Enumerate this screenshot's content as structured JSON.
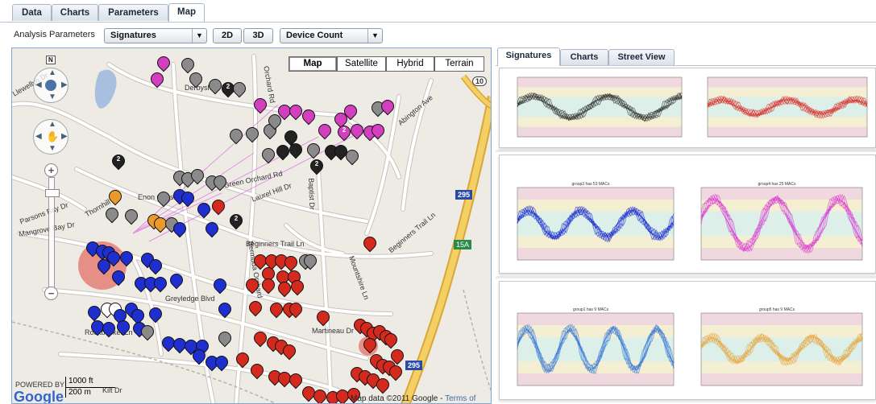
{
  "top_tabs": [
    "Data",
    "Charts",
    "Parameters",
    "Map"
  ],
  "toolbar": {
    "analysis_label": "Analysis Parameters",
    "analysis_select": "Signatures",
    "btn_2d": "2D",
    "btn_3d": "3D",
    "metric_select": "Device Count"
  },
  "map": {
    "map_types": [
      "Map",
      "Satellite",
      "Hybrid",
      "Terrain"
    ],
    "selected_type": "Map",
    "compass_label": "N",
    "scale_ft": "1000 ft",
    "scale_m": "200 m",
    "powered_by": "POWERED BY",
    "logo": "Google",
    "credit": "Map data ©2011 Google - ",
    "terms": "Terms of Use",
    "roads": [
      "Derbyshire Rd",
      "Orchard Rd",
      "Abington Ave",
      "Green Orchard Rd",
      "Laurel Hill Dr",
      "Enon Oaks",
      "Thornhill Rd",
      "Parsons Bay Dr",
      "Mangrove Bay Dr",
      "Beginners Trail Ln",
      "Baptist Dr",
      "Bermuda Orchard",
      "Greyledge Blvd",
      "Mountshire Ln",
      "Martineau Dr",
      "Rockbasket Ln",
      "Kilt Dr",
      "Beginners Trail Ln",
      "Llewellyn Dr"
    ],
    "route_shields": [
      "10",
      "295",
      "15A",
      "295"
    ],
    "marker_colors": {
      "magenta": "#d23fbf",
      "gray": "#8a8a8a",
      "black": "#222222",
      "blue": "#1f2fcf",
      "orange": "#e99a2b",
      "red": "#d42a1e",
      "white": "#ffffff"
    }
  },
  "right_tabs": [
    "Signatures",
    "Charts",
    "Street View"
  ],
  "signatures": {
    "panels": [
      {
        "charts": [
          {
            "title": "",
            "color": "#222222"
          },
          {
            "title": "",
            "color": "#d8221b"
          }
        ]
      },
      {
        "charts": [
          {
            "title": "group3 has 53 MACs",
            "color": "#0a1bd0"
          },
          {
            "title": "group4 has 25 MACs",
            "color": "#d52bd0"
          }
        ]
      },
      {
        "charts": [
          {
            "title": "group1 has 9 MACs",
            "color": "#2a6fd6"
          },
          {
            "title": "group5 has 9 MACs",
            "color": "#e7a032"
          }
        ]
      }
    ]
  }
}
